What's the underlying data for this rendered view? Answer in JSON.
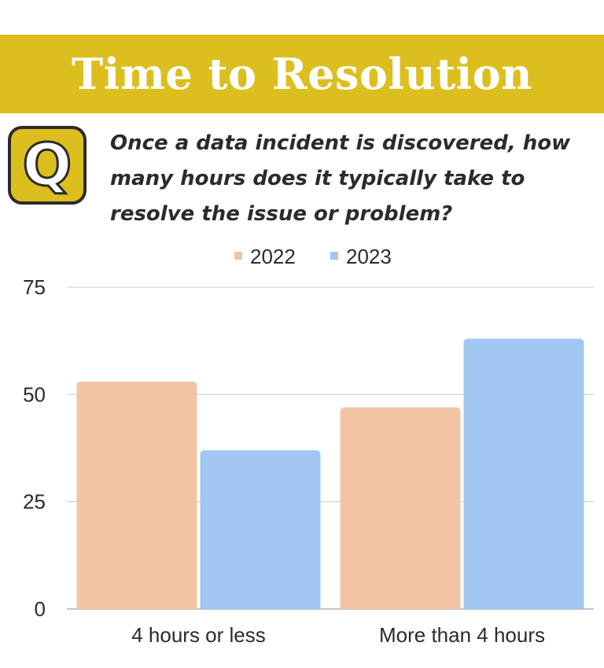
{
  "header": {
    "title": "Time to Resolution",
    "badge_letter": "Q"
  },
  "question": "Once a data incident is discovered, how many hours does it typically take to resolve the issue or problem?",
  "colors": {
    "banner": "#dcbf1e",
    "series_2022": "#f3c4a4",
    "series_2023": "#a0c8f3",
    "text": "#2b2b2b",
    "grid": "#cccccc"
  },
  "chart_data": {
    "type": "bar",
    "categories": [
      "4 hours or less",
      "More than 4 hours"
    ],
    "series": [
      {
        "name": "2022",
        "values": [
          53,
          47
        ]
      },
      {
        "name": "2023",
        "values": [
          37,
          63
        ]
      }
    ],
    "ylim": [
      0,
      75
    ],
    "yticks": [
      0,
      25,
      50,
      75
    ],
    "grid": true,
    "legend": "top-center"
  }
}
